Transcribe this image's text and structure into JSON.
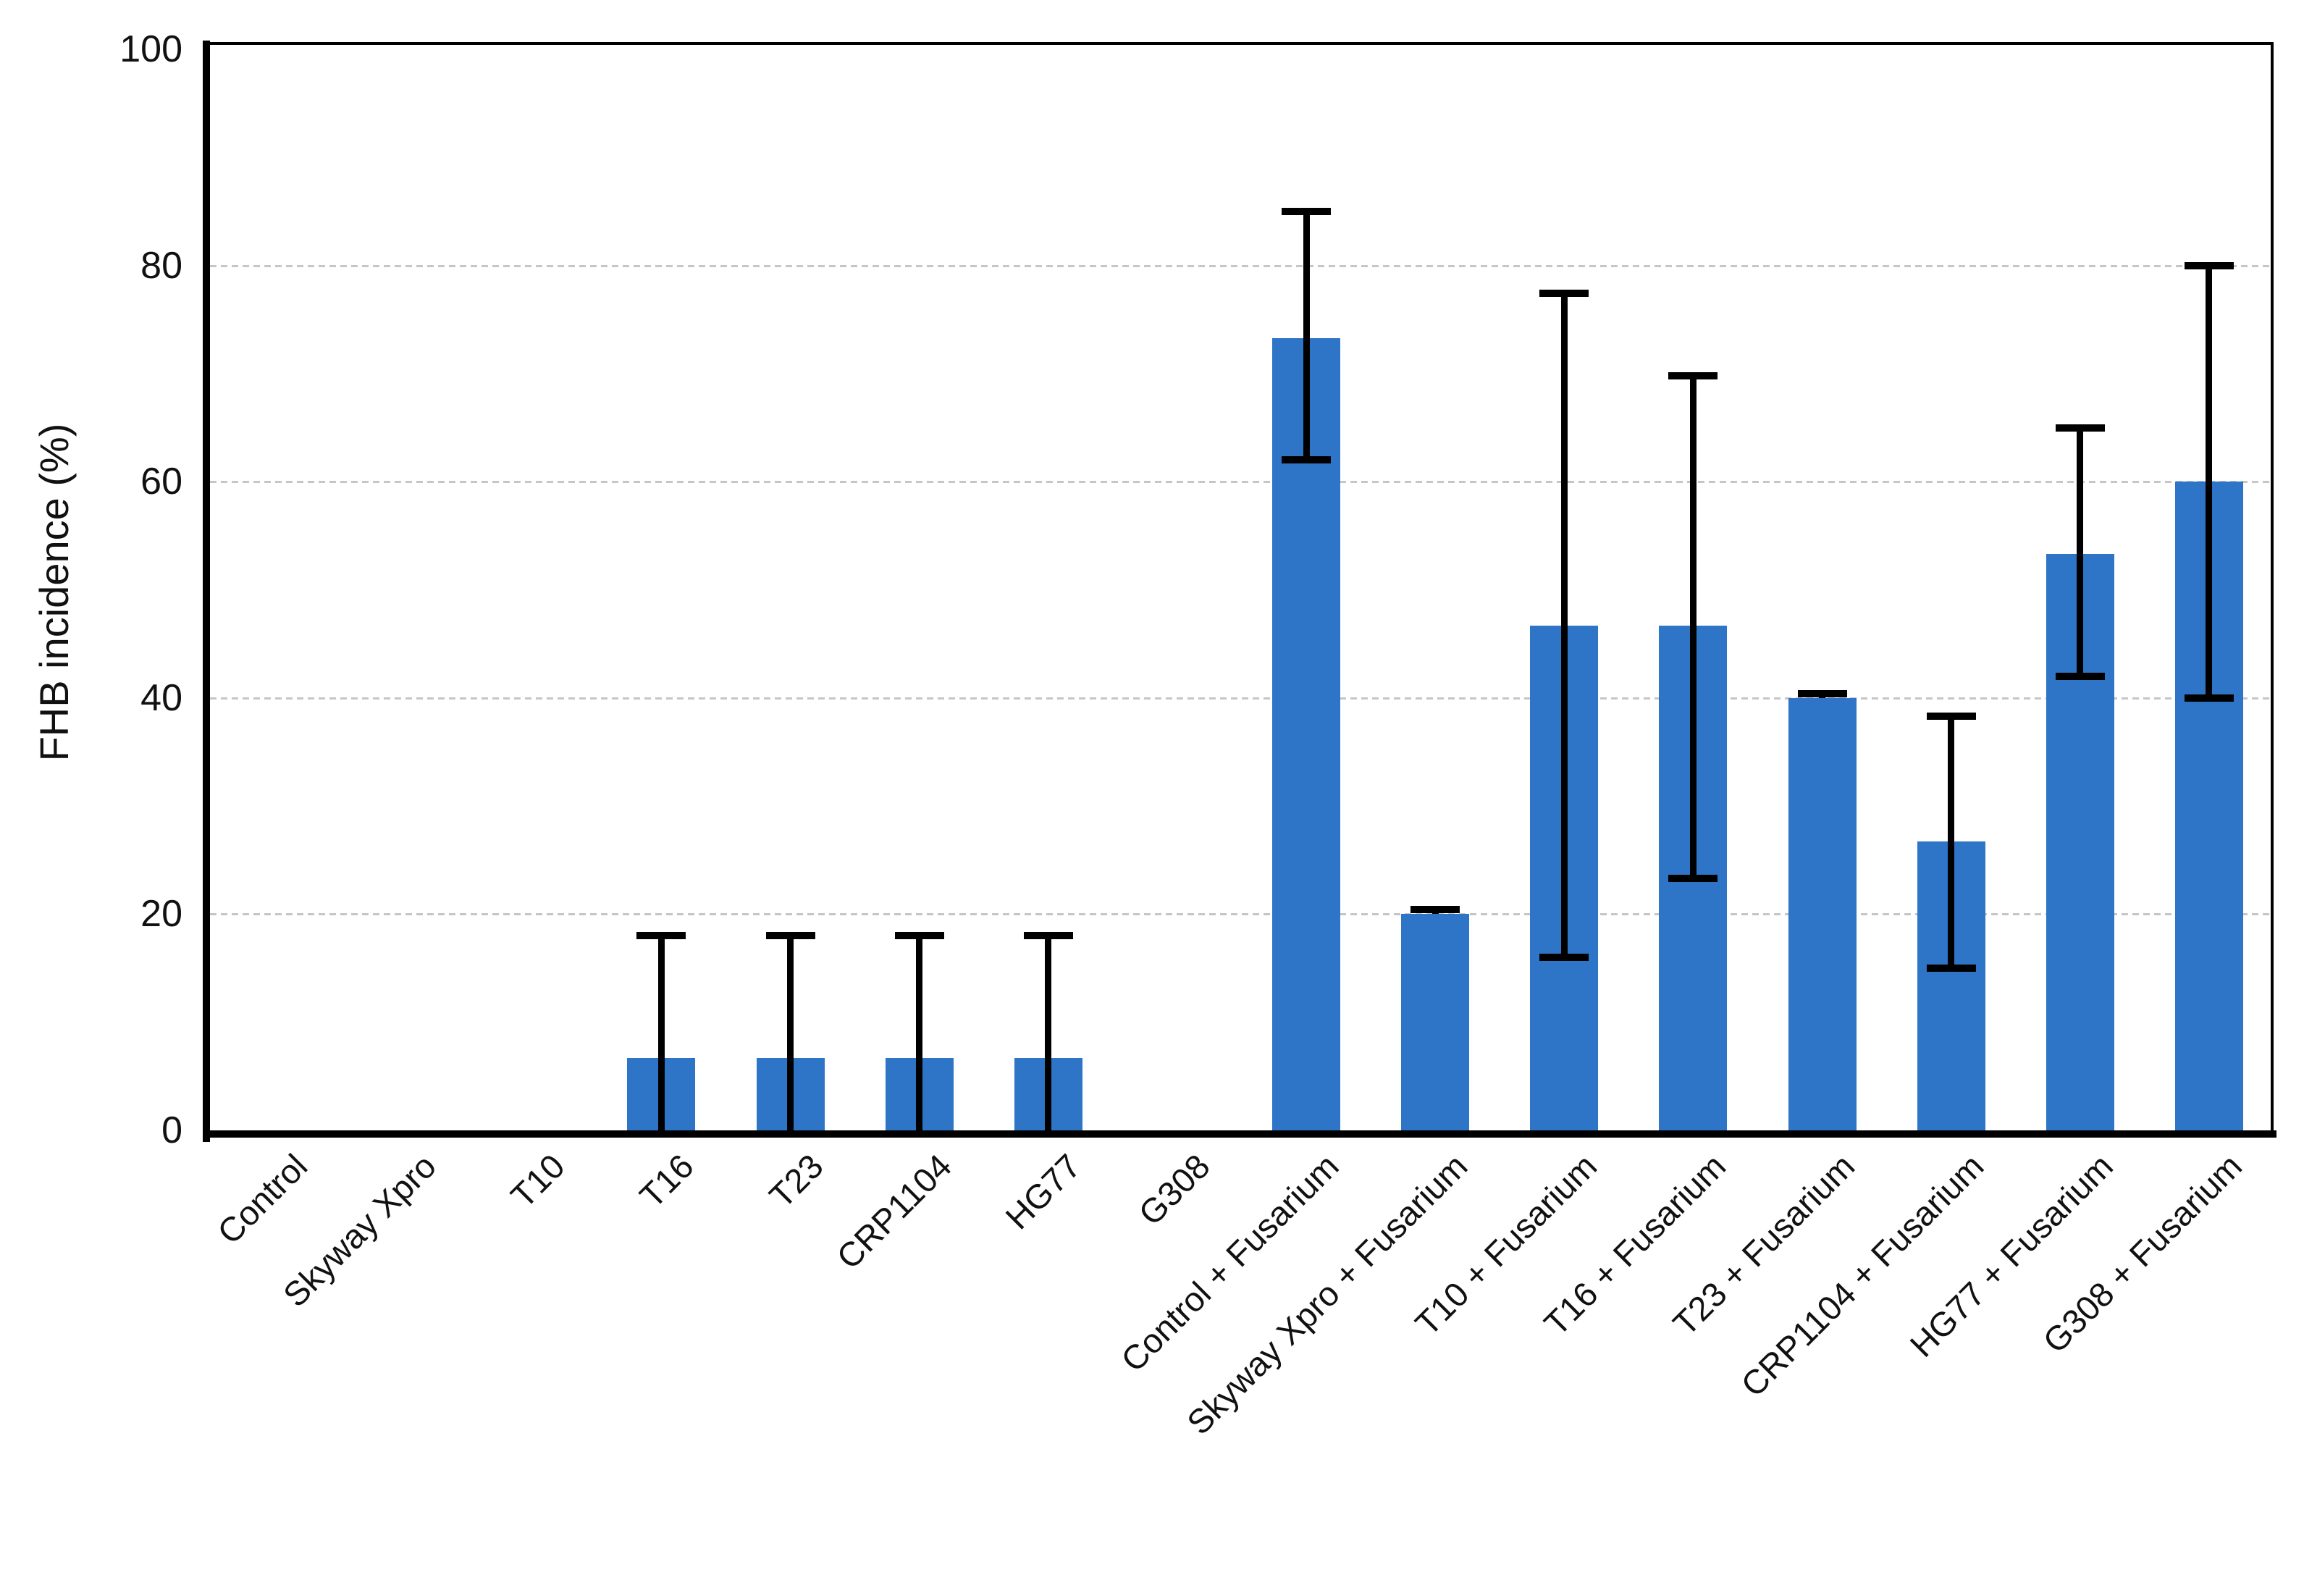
{
  "chart_data": {
    "type": "bar",
    "title": "",
    "xlabel": "",
    "ylabel": "FHB incidence (%)",
    "ylim": [
      0,
      100
    ],
    "yticks": [
      0,
      20,
      40,
      60,
      80,
      100
    ],
    "grid": "horizontal dotted gridlines at 20, 40, 60, 80",
    "legend_position": "none",
    "bar_color": "#2e74c7",
    "error_bar_color": "#000000",
    "categories": [
      "Control",
      "Skyway Xpro",
      "T10",
      "T16",
      "T23",
      "CRP1104",
      "HG77",
      "G308",
      "Control + Fusarium",
      "Skyway Xpro + Fusarium",
      "T10 + Fusarium",
      "T16 + Fusarium",
      "T23 + Fusarium",
      "CRP1104 + Fusarium",
      "HG77 + Fusarium",
      "G308 + Fusarium"
    ],
    "values": [
      0,
      0,
      0,
      6.7,
      6.7,
      6.7,
      6.7,
      0,
      73.3,
      20,
      46.7,
      46.7,
      40,
      26.7,
      53.3,
      60
    ],
    "error_bars": [
      null,
      null,
      null,
      {
        "lo": 0,
        "hi": 18,
        "cap_lo": false,
        "cap_hi": true
      },
      {
        "lo": 0,
        "hi": 18,
        "cap_lo": false,
        "cap_hi": true
      },
      {
        "lo": 0,
        "hi": 18,
        "cap_lo": false,
        "cap_hi": true
      },
      {
        "lo": 0,
        "hi": 18,
        "cap_lo": false,
        "cap_hi": true
      },
      null,
      {
        "lo": 62,
        "hi": 85,
        "cap_lo": true,
        "cap_hi": true
      },
      {
        "lo": 20,
        "hi": 20.4,
        "cap_lo": false,
        "cap_hi": true
      },
      {
        "lo": 16,
        "hi": 77.4,
        "cap_lo": true,
        "cap_hi": true
      },
      {
        "lo": 23.3,
        "hi": 69.8,
        "cap_lo": true,
        "cap_hi": true
      },
      {
        "lo": 40,
        "hi": 40.4,
        "cap_lo": false,
        "cap_hi": true
      },
      {
        "lo": 15,
        "hi": 38.3,
        "cap_lo": true,
        "cap_hi": true
      },
      {
        "lo": 42,
        "hi": 65,
        "cap_lo": true,
        "cap_hi": true
      },
      {
        "lo": 40,
        "hi": 80,
        "cap_lo": true,
        "cap_hi": true
      }
    ]
  }
}
